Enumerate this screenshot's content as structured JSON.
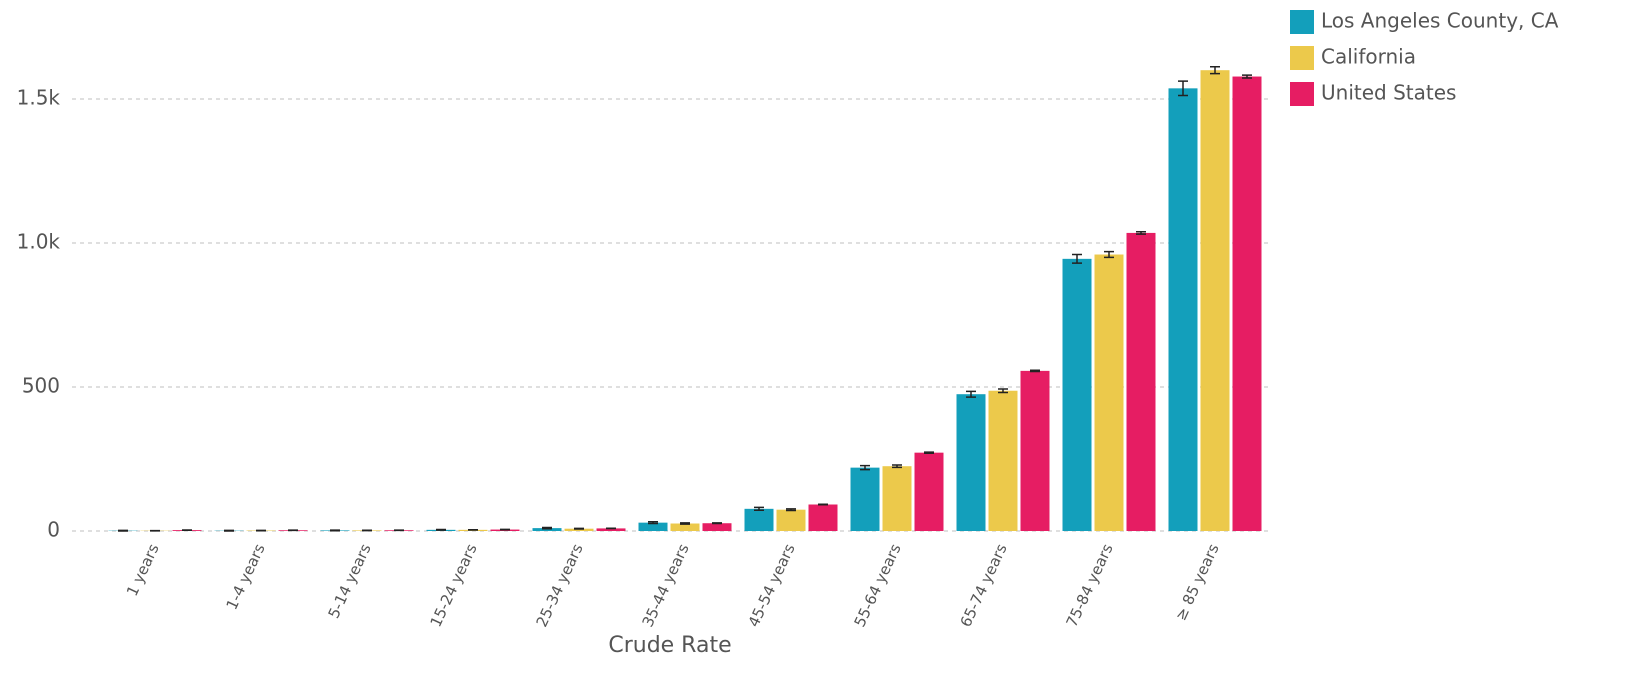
{
  "chart_data": {
    "type": "bar",
    "x_label": "Crude Rate",
    "categories": [
      "1 years",
      "1-4 years",
      "5-14 years",
      "15-24 years",
      "25-34 years",
      "35-44 years",
      "45-54 years",
      "55-64 years",
      "65-74 years",
      "75-84 years",
      "≥ 85 years"
    ],
    "series": [
      {
        "name": "Los Angeles County, CA",
        "color": "#139fbb",
        "values": [
          1,
          1,
          2,
          4,
          10,
          29,
          77,
          220,
          475,
          945,
          1537
        ],
        "errors": [
          1,
          1,
          1,
          1,
          2,
          3,
          5,
          7,
          10,
          15,
          25
        ]
      },
      {
        "name": "California",
        "color": "#ecc94b",
        "values": [
          1,
          1.5,
          2,
          4,
          8,
          26,
          74,
          225,
          487,
          960,
          1600
        ],
        "errors": [
          0.5,
          0.5,
          0.5,
          0.5,
          1,
          2,
          3,
          4,
          6,
          10,
          12
        ]
      },
      {
        "name": "United States",
        "color": "#e61d63",
        "values": [
          3,
          2.5,
          2.5,
          5,
          9,
          27,
          92,
          272,
          556,
          1035,
          1578
        ],
        "errors": [
          0.5,
          0.5,
          0.5,
          0.5,
          0.5,
          1,
          1,
          2,
          2,
          4,
          5
        ]
      }
    ],
    "ylim": [
      0,
      1700
    ],
    "yticks": [
      0,
      500,
      {
        "value": 1000,
        "label": "1.0k"
      },
      {
        "value": 1500,
        "label": "1.5k"
      }
    ],
    "grid": true,
    "legend": "top-right"
  }
}
